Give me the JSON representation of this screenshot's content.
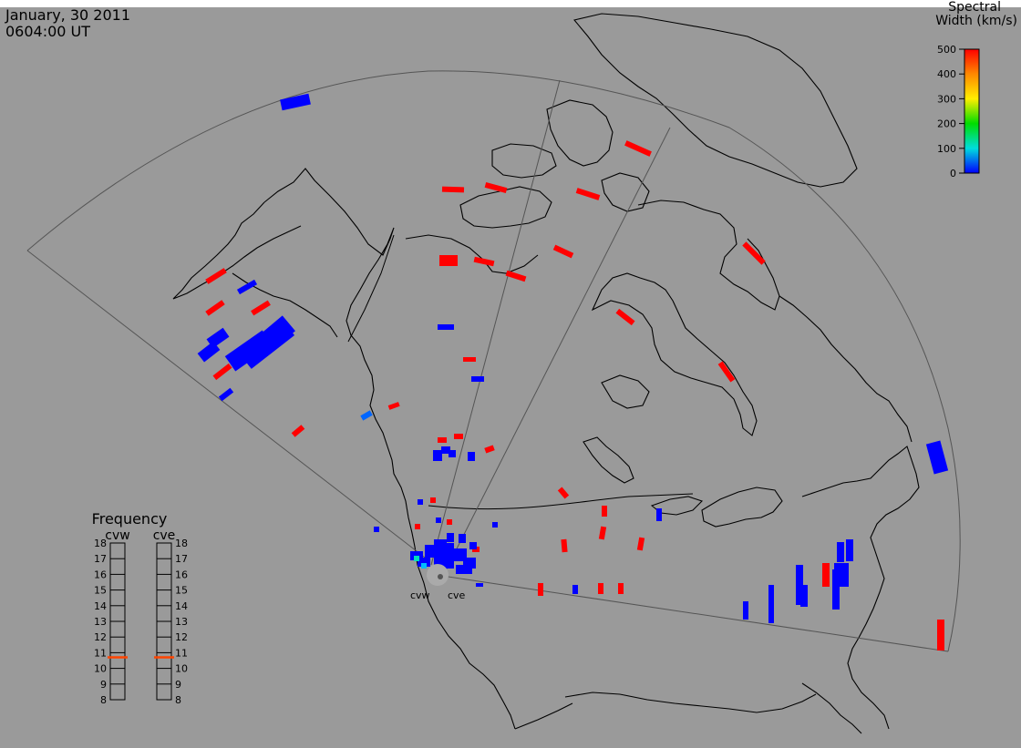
{
  "header": {
    "date": "January, 30 2011",
    "time": "0604:00 UT"
  },
  "colorbar": {
    "title_line1": "Spectral",
    "title_line2": "Width (km/s)",
    "min": 0,
    "max": 500,
    "ticks": [
      "500",
      "400",
      "300",
      "200",
      "100",
      "0"
    ],
    "gradient_colors": [
      "#ff0000",
      "#ff8800",
      "#ffee00",
      "#00dd00",
      "#00dddd",
      "#0000ff"
    ]
  },
  "frequency_panel": {
    "title": "Frequency",
    "min_mhz": 8,
    "max_mhz": 18,
    "ticks": [
      "18",
      "17",
      "16",
      "15",
      "14",
      "13",
      "12",
      "11",
      "10",
      "9",
      "8"
    ],
    "radars": [
      {
        "name": "cvw",
        "frequency_mhz": 10.7
      },
      {
        "name": "cve",
        "frequency_mhz": 10.7
      }
    ],
    "marker_color": "#ff4400"
  },
  "radar_labels": {
    "west": "cvw",
    "east": "cve"
  },
  "colors": {
    "background": "#9a9a9a",
    "land": "#9a9a9a",
    "coast": "#000000",
    "fov": "#555555",
    "high_width": "#ff0000",
    "low_width": "#0000ff"
  }
}
